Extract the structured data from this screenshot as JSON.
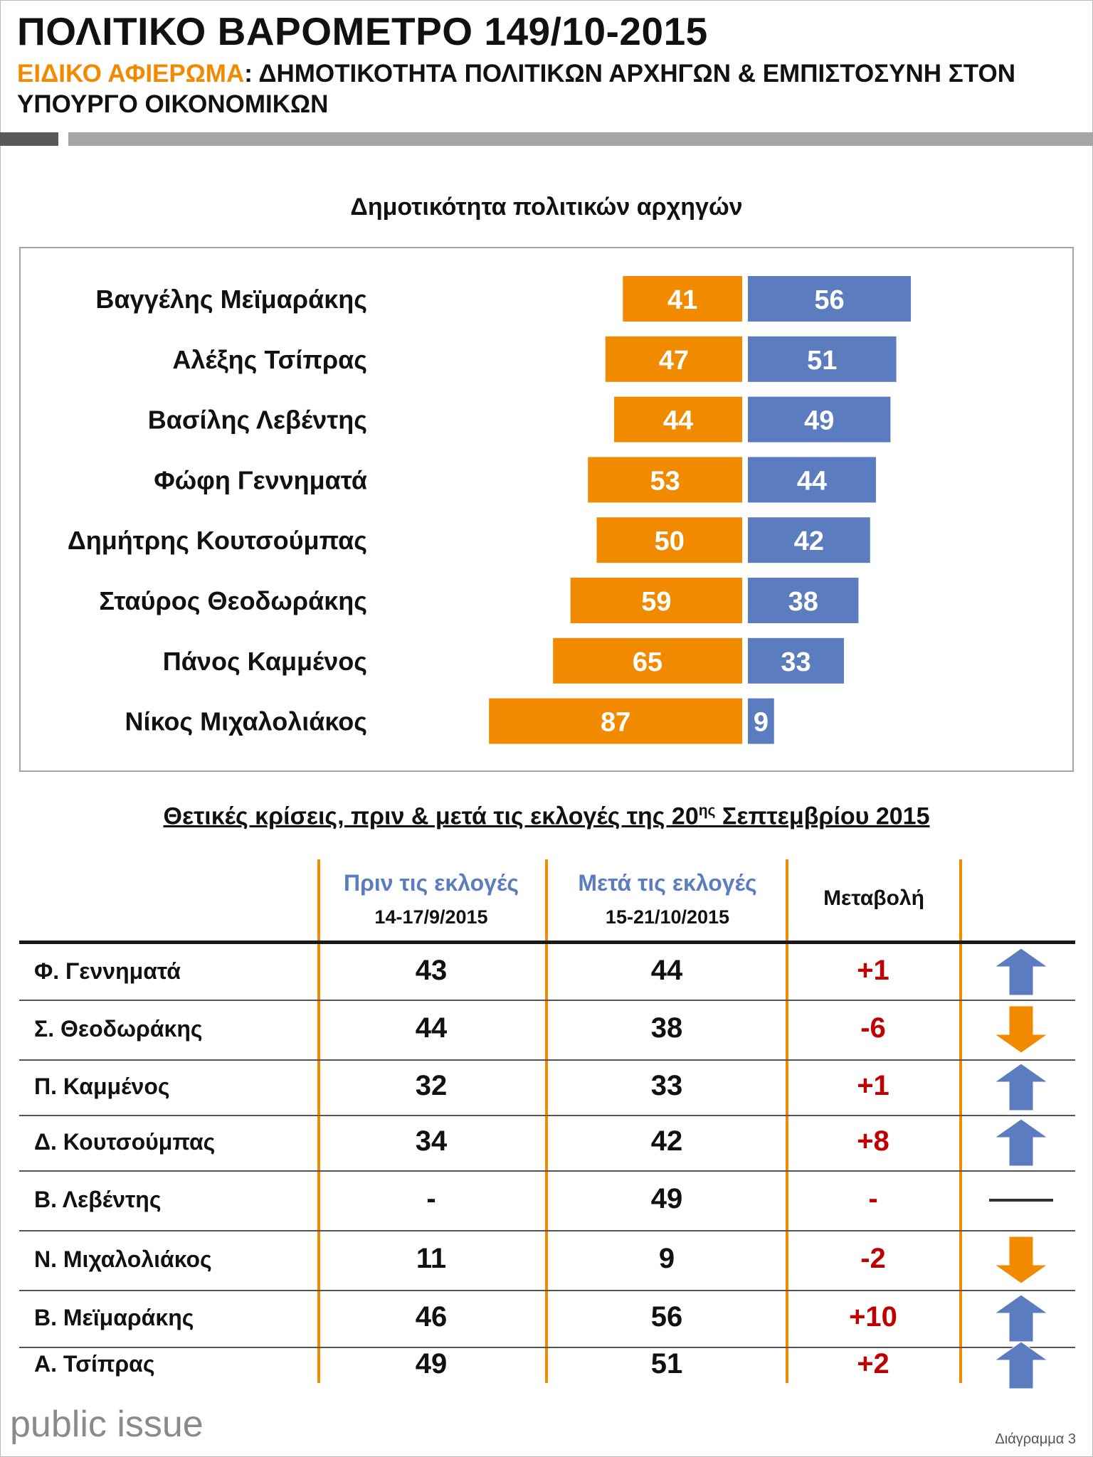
{
  "header": {
    "title": "ΠΟΛΙΤΙΚΟ ΒΑΡΟΜΕΤΡΟ 149/10-2015",
    "subtitle_accent": "ΕΙΔΙΚΟ ΑΦΙΕΡΩΜΑ",
    "subtitle_rest": ": ΔΗΜΟΤΙΚΟΤΗΤΑ ΠΟΛΙΤΙΚΩΝ ΑΡΧΗΓΩΝ & ΕΜΠΙΣΤΟΣΥΝΗ ΣΤΟΝ ΥΠΟΥΡΓΟ ΟΙΚΟΝΟΜΙΚΩΝ"
  },
  "colors": {
    "negative": "#f28a00",
    "positive": "#5b7dbf",
    "change": "#c00000"
  },
  "chart_data": {
    "type": "bar",
    "title": "Δημοτικότητα πολιτικών αρχηγών",
    "categories": [
      "Βαγγέλης Μεϊμαράκης",
      "Αλέξης Τσίπρας",
      "Βασίλης Λεβέντης",
      "Φώφη Γεννηματά",
      "Δημήτρης Κουτσούμπας",
      "Σταύρος Θεοδωράκης",
      "Πάνος Καμμένος",
      "Νίκος Μιχαλολιάκος"
    ],
    "series": [
      {
        "color": "#f28a00",
        "values": [
          41,
          47,
          44,
          53,
          50,
          59,
          65,
          87
        ]
      },
      {
        "color": "#5b7dbf",
        "values": [
          56,
          51,
          49,
          44,
          42,
          38,
          33,
          9
        ]
      }
    ],
    "legend": "none",
    "grid": false
  },
  "table": {
    "title_main": "Θετικές κρίσεις, πριν & μετά τις εκλογές της 20",
    "title_sup": "ης",
    "title_end": " Σεπτεμβρίου 2015",
    "col_before_label": "Πριν τις εκλογές",
    "col_before_dates": "14-17/9/2015",
    "col_after_label": "Μετά τις εκλογές",
    "col_after_dates": "15-21/10/2015",
    "col_change": "Μεταβολή",
    "rows": [
      {
        "name": "Φ. Γεννηματά",
        "before": "43",
        "after": "44",
        "change": "+1",
        "trend": "up"
      },
      {
        "name": "Σ. Θεοδωράκης",
        "before": "44",
        "after": "38",
        "change": "-6",
        "trend": "down"
      },
      {
        "name": "Π. Καμμένος",
        "before": "32",
        "after": "33",
        "change": "+1",
        "trend": "up"
      },
      {
        "name": "Δ. Κουτσούμπας",
        "before": "34",
        "after": "42",
        "change": "+8",
        "trend": "up"
      },
      {
        "name": "Β. Λεβέντης",
        "before": "-",
        "after": "49",
        "change": "-",
        "trend": "flat"
      },
      {
        "name": "Ν. Μιχαλολιάκος",
        "before": "11",
        "after": "9",
        "change": "-2",
        "trend": "down"
      },
      {
        "name": "Β. Μεϊμαράκης",
        "before": "46",
        "after": "56",
        "change": "+10",
        "trend": "up"
      },
      {
        "name": "Α. Τσίπρας",
        "before": "49",
        "after": "51",
        "change": "+2",
        "trend": "up"
      }
    ]
  },
  "footer": {
    "logo": "public issue",
    "note": "Διάγραμμα 3"
  }
}
